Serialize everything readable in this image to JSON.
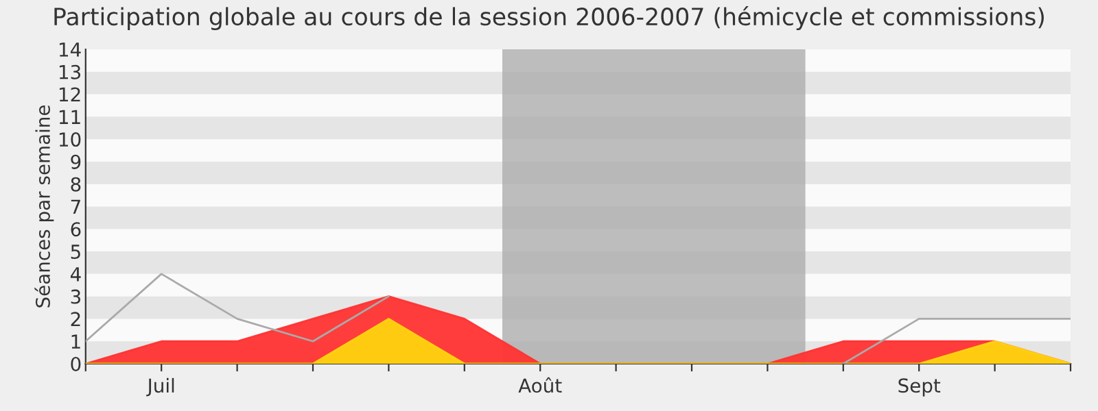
{
  "chart_data": {
    "type": "area",
    "title": "Participation globale au cours de la session 2006-2007 (hémicycle et commissions)",
    "ylabel": "Séances par semaine",
    "categories": [
      null,
      "Juil",
      null,
      null,
      null,
      null,
      "Août",
      null,
      null,
      null,
      null,
      "Sept",
      null,
      null
    ],
    "series": [
      {
        "color": "#ff3333",
        "values": [
          0,
          1,
          1,
          2,
          3,
          2,
          0,
          0,
          0,
          0,
          1,
          1,
          1,
          0
        ]
      },
      {
        "color": "#ffd30f",
        "values": [
          0,
          0,
          0,
          0,
          2,
          0,
          0,
          0,
          0,
          0,
          0,
          0,
          1,
          0
        ]
      },
      {
        "type": "line",
        "color": "#aaaaaa",
        "values": [
          1,
          4,
          2,
          1,
          3,
          null,
          null,
          null,
          null,
          null,
          0,
          2,
          2,
          2
        ]
      }
    ],
    "ylim": [
      0,
      14
    ],
    "yticks": [
      0,
      1,
      2,
      3,
      4,
      5,
      6,
      7,
      8,
      9,
      10,
      11,
      12,
      13,
      14
    ],
    "legend": false
  }
}
